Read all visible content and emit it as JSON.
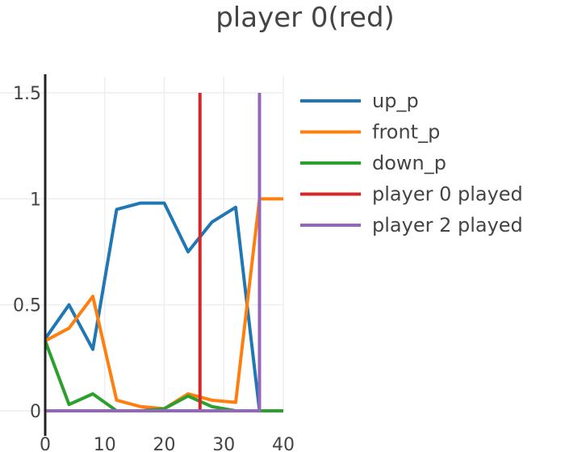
{
  "chart_data": {
    "type": "line",
    "title": "player 0(red)",
    "xlim": [
      0,
      40
    ],
    "ylim": [
      0,
      1.5
    ],
    "x_ticks": [
      "0",
      "10",
      "20",
      "30",
      "40"
    ],
    "y_ticks": [
      "0",
      "0.5",
      "1",
      "1.5"
    ],
    "grid": true,
    "legend_position": "right",
    "series": [
      {
        "name": "up_p",
        "color": "#1f77b4",
        "x": [
          0,
          4,
          8,
          12,
          16,
          20,
          24,
          28,
          32,
          36
        ],
        "y": [
          0.34,
          0.5,
          0.29,
          0.95,
          0.98,
          0.98,
          0.75,
          0.89,
          0.96,
          0.0
        ]
      },
      {
        "name": "front_p",
        "color": "#ff7f0e",
        "x": [
          0,
          4,
          8,
          12,
          16,
          20,
          24,
          28,
          32,
          36,
          40
        ],
        "y": [
          0.33,
          0.39,
          0.54,
          0.05,
          0.02,
          0.01,
          0.08,
          0.05,
          0.04,
          1.0,
          1.0
        ]
      },
      {
        "name": "down_p",
        "color": "#2ca02c",
        "x": [
          0,
          4,
          8,
          12,
          16,
          20,
          24,
          28,
          32,
          36,
          40
        ],
        "y": [
          0.33,
          0.03,
          0.08,
          0.0,
          0.0,
          0.01,
          0.07,
          0.02,
          0.0,
          0.0,
          0.0
        ]
      },
      {
        "name": "player 0 played",
        "color": "#d62728",
        "x": [
          26,
          26
        ],
        "y": [
          0,
          1.5
        ]
      },
      {
        "name": "player 2 played",
        "color": "#9467bd",
        "x": [
          0,
          36,
          36
        ],
        "y": [
          0,
          0,
          1.5
        ]
      }
    ]
  }
}
